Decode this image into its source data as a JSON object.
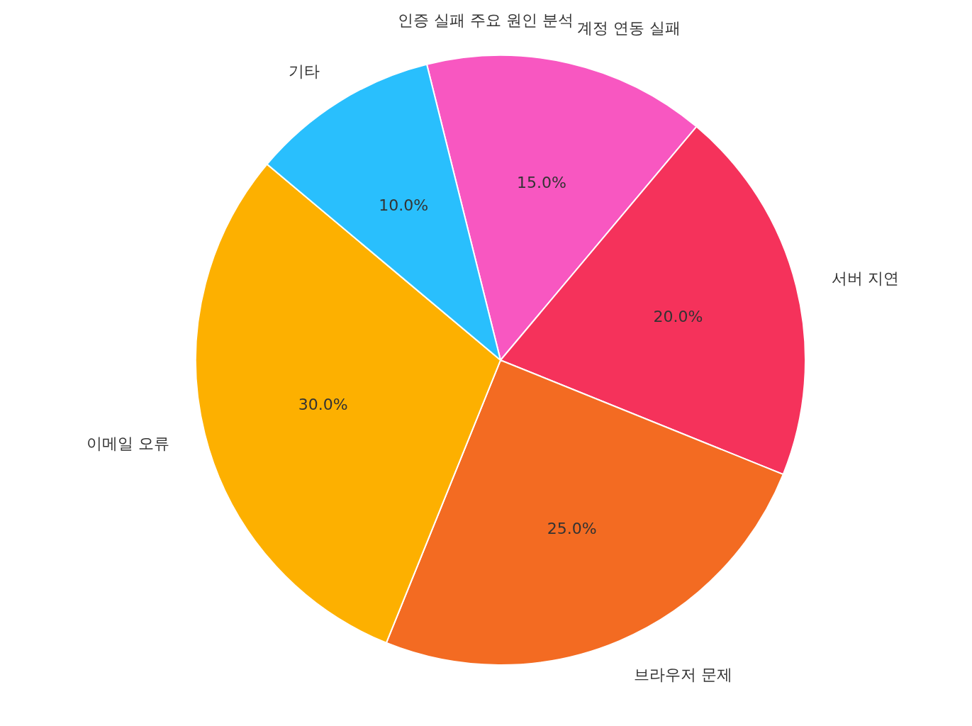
{
  "chart_data": {
    "type": "pie",
    "title": "인증 실패 주요 원인 분석",
    "categories": [
      "계정 연동 실패",
      "서버 지연",
      "브라우저 문제",
      "이메일 오류",
      "기타"
    ],
    "values": [
      15,
      20,
      25,
      30,
      10
    ],
    "colors": [
      "#f857c1",
      "#f5325b",
      "#f36b22",
      "#fdb000",
      "#29bffd"
    ],
    "value_labels": [
      "15.0%",
      "20.0%",
      "25.0%",
      "30.0%",
      "10.0%"
    ]
  }
}
